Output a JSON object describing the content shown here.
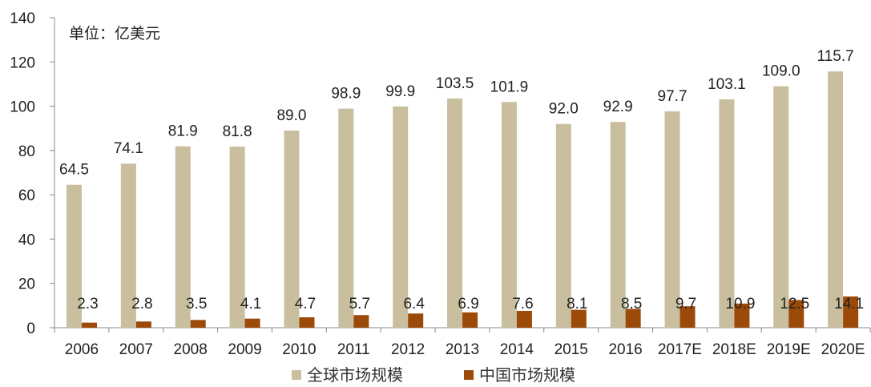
{
  "chart_data": {
    "type": "bar",
    "unit_label": "单位：亿美元",
    "categories": [
      "2006",
      "2007",
      "2008",
      "2009",
      "2010",
      "2011",
      "2012",
      "2013",
      "2014",
      "2015",
      "2016",
      "2017E",
      "2018E",
      "2019E",
      "2020E"
    ],
    "series": [
      {
        "name": "全球市场规模",
        "color": "#c9bf9f",
        "values": [
          64.5,
          74.1,
          81.9,
          81.8,
          89.0,
          98.9,
          99.9,
          103.5,
          101.9,
          92.0,
          92.9,
          97.7,
          103.1,
          109.0,
          115.7
        ],
        "labels": [
          "64.5",
          "74.1",
          "81.9",
          "81.8",
          "89.0",
          "98.9",
          "99.9",
          "103.5",
          "101.9",
          "92.0",
          "92.9",
          "97.7",
          "103.1",
          "109.0",
          "115.7"
        ]
      },
      {
        "name": "中国市场规模",
        "color": "#9c4a09",
        "values": [
          2.3,
          2.8,
          3.5,
          4.1,
          4.7,
          5.7,
          6.4,
          6.9,
          7.6,
          8.1,
          8.5,
          9.7,
          10.9,
          12.5,
          14.1
        ],
        "labels": [
          "2.3",
          "2.8",
          "3.5",
          "4.1",
          "4.7",
          "5.7",
          "6.4",
          "6.9",
          "7.6",
          "8.1",
          "8.5",
          "9.7",
          "10.9",
          "12.5",
          "14.1"
        ]
      }
    ],
    "ylim": [
      0,
      140
    ],
    "yticks": [
      "0",
      "20",
      "40",
      "60",
      "80",
      "100",
      "120",
      "140"
    ],
    "grid": false,
    "legend_position": "bottom"
  }
}
